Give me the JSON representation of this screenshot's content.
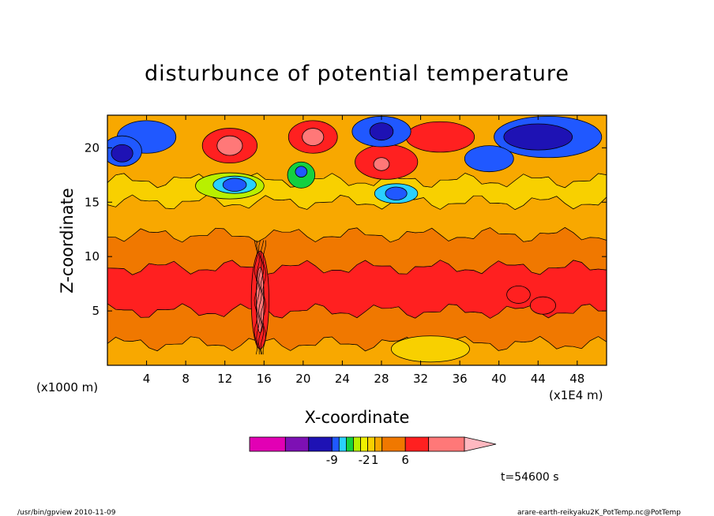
{
  "chart_data": {
    "type": "heatmap",
    "title": "disturbunce of potential temperature",
    "xlabel": "X-coordinate",
    "ylabel": "Z-coordinate",
    "x_unit": "(x1000 m)",
    "y_unit": "(x1E4 m)",
    "xlim": [
      0,
      51
    ],
    "ylim": [
      0,
      23
    ],
    "x_ticks": [
      "4",
      "8",
      "12",
      "16",
      "20",
      "24",
      "28",
      "32",
      "36",
      "40",
      "44",
      "48"
    ],
    "y_ticks": [
      "5",
      "10",
      "15",
      "20"
    ],
    "x_tick_values": [
      4,
      8,
      12,
      16,
      20,
      24,
      28,
      32,
      36,
      40,
      44,
      48
    ],
    "y_tick_values": [
      5,
      10,
      15,
      20
    ],
    "colorbar": {
      "colors": [
        "#e200b4",
        "#7d10b4",
        "#1e12b4",
        "#2058ff",
        "#2ad0ff",
        "#14d040",
        "#b8f000",
        "#f0f000",
        "#f8d000",
        "#f8a800",
        "#f07800",
        "#ff2020",
        "#ff7878",
        "#ffb8c0"
      ],
      "labels": [
        "-9",
        "-2",
        "1",
        "6"
      ],
      "label_positions": [
        3.0,
        7.5,
        9.0,
        11.0
      ]
    },
    "bands": [
      {
        "z_min": 0,
        "z_max": 2,
        "level": 9
      },
      {
        "z_min": 2,
        "z_max": 5,
        "level": 10
      },
      {
        "z_min": 5,
        "z_max": 9,
        "level": 11
      },
      {
        "z_min": 9,
        "z_max": 12,
        "level": 10
      },
      {
        "z_min": 12,
        "z_max": 15,
        "level": 9
      },
      {
        "z_min": 15,
        "z_max": 17,
        "level": 8
      },
      {
        "z_min": 17,
        "z_max": 23,
        "level": 9
      }
    ],
    "features": [
      {
        "x": 12.5,
        "z": 20.2,
        "rx": 2.8,
        "rz": 1.6,
        "level": 11
      },
      {
        "x": 12.5,
        "z": 20.2,
        "rx": 1.3,
        "rz": 0.9,
        "level": 12
      },
      {
        "x": 21.0,
        "z": 21.0,
        "rx": 2.5,
        "rz": 1.5,
        "level": 11
      },
      {
        "x": 21.0,
        "z": 21.0,
        "rx": 1.1,
        "rz": 0.8,
        "level": 12
      },
      {
        "x": 28.5,
        "z": 18.7,
        "rx": 3.2,
        "rz": 1.6,
        "level": 11
      },
      {
        "x": 28.0,
        "z": 18.5,
        "rx": 0.8,
        "rz": 0.6,
        "level": 12
      },
      {
        "x": 34.0,
        "z": 21.0,
        "rx": 3.5,
        "rz": 1.4,
        "level": 11
      },
      {
        "x": 28.0,
        "z": 21.5,
        "rx": 3.0,
        "rz": 1.4,
        "level": 3
      },
      {
        "x": 28.0,
        "z": 21.5,
        "rx": 1.2,
        "rz": 0.8,
        "level": 2
      },
      {
        "x": 4.0,
        "z": 21.0,
        "rx": 3.0,
        "rz": 1.5,
        "level": 3
      },
      {
        "x": 1.5,
        "z": 19.7,
        "rx": 2.0,
        "rz": 1.4,
        "level": 3
      },
      {
        "x": 1.5,
        "z": 19.5,
        "rx": 1.1,
        "rz": 0.8,
        "level": 2
      },
      {
        "x": 45.0,
        "z": 21.0,
        "rx": 5.5,
        "rz": 1.9,
        "level": 3
      },
      {
        "x": 44.0,
        "z": 21.0,
        "rx": 3.5,
        "rz": 1.2,
        "level": 2
      },
      {
        "x": 39.0,
        "z": 19.0,
        "rx": 2.5,
        "rz": 1.2,
        "level": 3
      },
      {
        "x": 12.5,
        "z": 16.5,
        "rx": 3.5,
        "rz": 1.2,
        "level": 6
      },
      {
        "x": 13.0,
        "z": 16.6,
        "rx": 2.2,
        "rz": 0.8,
        "level": 4
      },
      {
        "x": 13.0,
        "z": 16.6,
        "rx": 1.2,
        "rz": 0.6,
        "level": 3
      },
      {
        "x": 29.5,
        "z": 15.8,
        "rx": 2.2,
        "rz": 0.9,
        "level": 4
      },
      {
        "x": 29.5,
        "z": 15.8,
        "rx": 1.1,
        "rz": 0.6,
        "level": 3
      },
      {
        "x": 19.8,
        "z": 17.5,
        "rx": 1.4,
        "rz": 1.2,
        "level": 5
      },
      {
        "x": 19.8,
        "z": 17.8,
        "rx": 0.6,
        "rz": 0.5,
        "level": 3
      },
      {
        "x": 42.0,
        "z": 6.5,
        "rx": 1.2,
        "rz": 0.8,
        "level": 11
      },
      {
        "x": 44.5,
        "z": 5.5,
        "rx": 1.3,
        "rz": 0.8,
        "level": 11
      },
      {
        "x": 33.0,
        "z": 1.5,
        "rx": 4.0,
        "rz": 1.2,
        "level": 8
      },
      {
        "x": 15.6,
        "z": 6.0,
        "rx": 0.9,
        "rz": 4.5,
        "level": 11
      },
      {
        "x": 15.6,
        "z": 6.0,
        "rx": 0.4,
        "rz": 3.0,
        "level": 12
      }
    ],
    "annotations": {
      "time": "t=54600 s",
      "footer_left": "/usr/bin/gpview   2010-11-09",
      "footer_right": "arare-earth-reikyaku2K_PotTemp.nc@PotTemp"
    }
  }
}
